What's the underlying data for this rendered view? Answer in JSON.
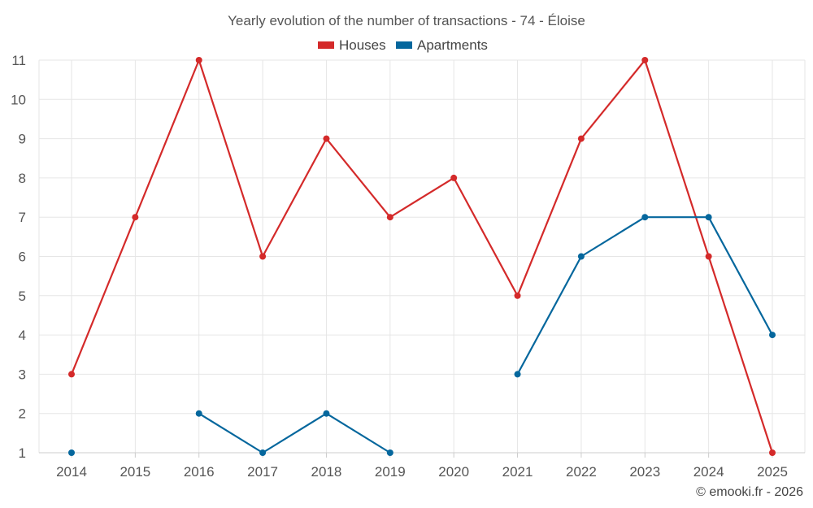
{
  "chart_data": {
    "type": "line",
    "title": "Yearly evolution of the number of transactions - 74 - Éloise",
    "categories": [
      "2014",
      "2015",
      "2016",
      "2017",
      "2018",
      "2019",
      "2020",
      "2021",
      "2022",
      "2023",
      "2024",
      "2025"
    ],
    "series": [
      {
        "name": "Houses",
        "color": "#d42a2a",
        "values": [
          3,
          7,
          11,
          6,
          9,
          7,
          8,
          5,
          9,
          11,
          6,
          1
        ]
      },
      {
        "name": "Apartments",
        "color": "#05679d",
        "values": [
          1,
          null,
          2,
          1,
          2,
          1,
          null,
          3,
          6,
          7,
          7,
          4
        ]
      }
    ],
    "ylim": [
      1,
      11
    ],
    "yticks": [
      1,
      2,
      3,
      4,
      5,
      6,
      7,
      8,
      9,
      10,
      11
    ],
    "grid": true,
    "legend_position": "top-center",
    "xlabel": "",
    "ylabel": ""
  },
  "credit": "© emooki.fr - 2026"
}
